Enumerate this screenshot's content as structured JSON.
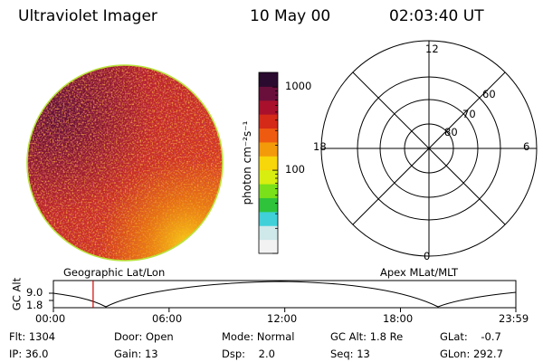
{
  "header": {
    "instrument": "Ultraviolet Imager",
    "date": "10 May 00",
    "time": "02:03:40 UT"
  },
  "colorbar": {
    "unit_label": "photon cm⁻²s⁻¹",
    "ticks": [
      {
        "value": 1000,
        "label": "1000"
      },
      {
        "value": 100,
        "label": "100"
      }
    ],
    "range": [
      10,
      1500
    ],
    "scale": "log",
    "colors": [
      "#f2f2f2",
      "#cfe8ea",
      "#3fd0d8",
      "#2ec33a",
      "#79e01a",
      "#d8ee10",
      "#f7d60a",
      "#f39a0a",
      "#ee5b10",
      "#d62a18",
      "#a8102c",
      "#6a0f3c",
      "#2a0a2e"
    ]
  },
  "polar_plot": {
    "mlt_labels": {
      "top": "12",
      "left": "18",
      "right": "6",
      "bottom": "0"
    },
    "lat_labels": [
      "60",
      "70",
      "80"
    ]
  },
  "orbit_plot": {
    "left_title": "Geographic Lat/Lon",
    "right_title": "Apex MLat/MLT",
    "ylabel": "GC Alt",
    "y_ticks": [
      "9.0",
      "1.8"
    ],
    "x_ticks": [
      "00:00",
      "06:00",
      "12:00",
      "18:00",
      "23:59"
    ],
    "current_time_marker": "02:03:40",
    "marker_color": "#d00000"
  },
  "info": {
    "flt": {
      "label": "Flt:",
      "value": "1304"
    },
    "ip": {
      "label": "IP:",
      "value": "36.0"
    },
    "door": {
      "label": "Door:",
      "value": "Open"
    },
    "gain": {
      "label": "Gain:",
      "value": "13"
    },
    "mode": {
      "label": "Mode:",
      "value": "Normal"
    },
    "dsp": {
      "label": "Dsp:",
      "value": "2.0"
    },
    "gcalt": {
      "label": "GC Alt:",
      "value": "1.8 Re"
    },
    "seq": {
      "label": "Seq:",
      "value": "13"
    },
    "glat": {
      "label": "GLat:",
      "value": "-0.7"
    },
    "glon": {
      "label": "GLon:",
      "value": "292.7"
    }
  }
}
